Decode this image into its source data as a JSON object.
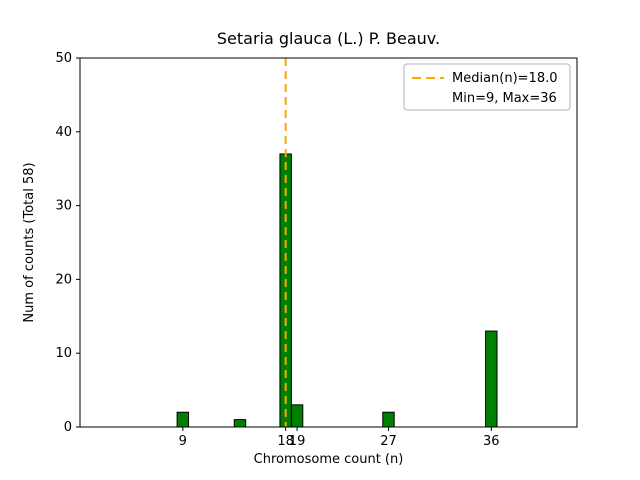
{
  "chart_data": {
    "type": "bar",
    "title": "Setaria glauca (L.) P. Beauv.",
    "xlabel": "Chromosome count (n)",
    "ylabel": "Num of counts    (Total 58)",
    "total_counts": 58,
    "x": [
      9,
      14,
      18,
      19,
      27,
      36
    ],
    "values": [
      2,
      1,
      37,
      3,
      2,
      13
    ],
    "bar_width_units": 1,
    "bar_color": "#008000",
    "bar_edge_color": "#000000",
    "xlim": [
      0,
      43.5
    ],
    "ylim": [
      0,
      50
    ],
    "xticks": [
      9,
      18,
      19,
      27,
      36
    ],
    "yticks": [
      0,
      10,
      20,
      30,
      40,
      50
    ],
    "grid": false,
    "median_line": {
      "x": 18,
      "color": "#ffa500",
      "style": "dashed",
      "width": 2
    },
    "legend": {
      "position": "upper right",
      "entries": [
        {
          "label": "Median(n)=18.0",
          "handle": "dashed-line",
          "color": "#ffa500"
        },
        {
          "label": "Min=9, Max=36",
          "handle": "none"
        }
      ]
    }
  }
}
